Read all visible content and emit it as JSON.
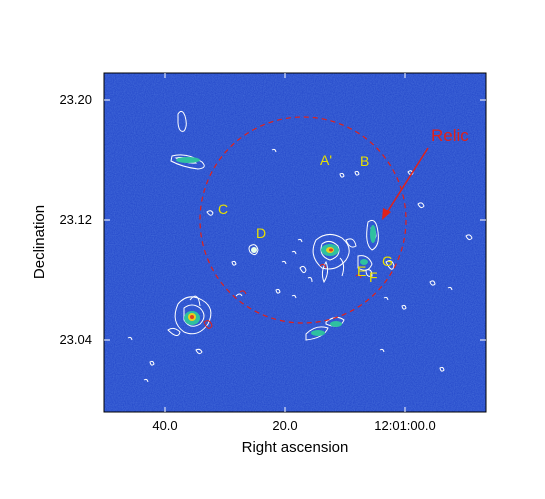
{
  "figure": {
    "xlabel": "Right ascension",
    "ylabel": "Declination",
    "x_ticks": [
      "40.0",
      "20.0",
      "12:01:00.0"
    ],
    "y_ticks": [
      "23.20",
      "23.12",
      "23.04"
    ],
    "background_color": "#1f43c8",
    "contour_color": "#ffffff",
    "annotation_color": "#e8e000",
    "relic_color": "#e0201a"
  },
  "annotations": {
    "relic": "Relic",
    "sources": [
      "A'",
      "B",
      "C",
      "D",
      "E",
      "F",
      "G"
    ]
  }
}
